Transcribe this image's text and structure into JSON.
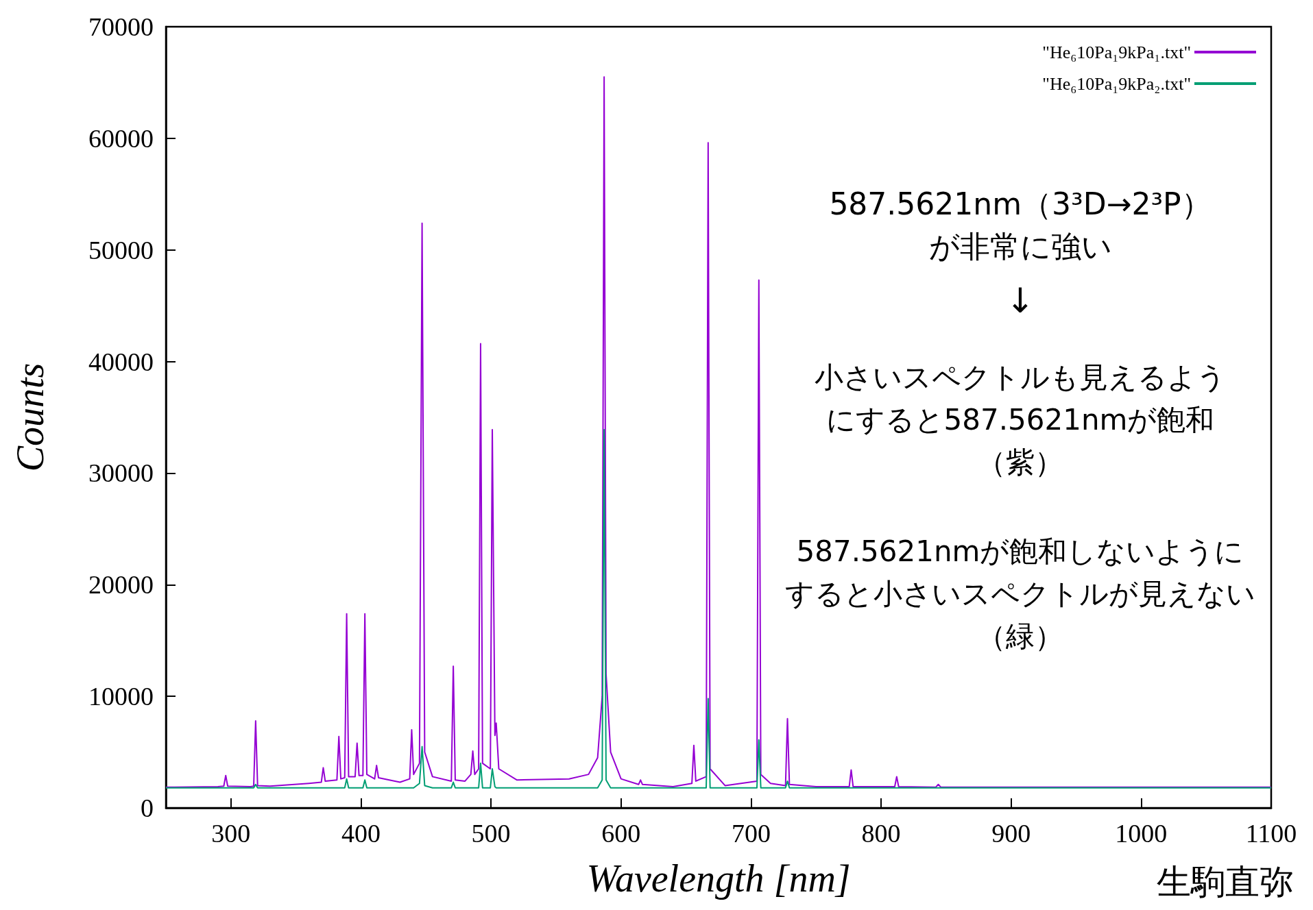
{
  "chart_data": {
    "type": "line",
    "xlabel": "Wavelength [nm]",
    "ylabel": "Counts",
    "xlim": [
      250,
      1100
    ],
    "ylim": [
      0,
      70000
    ],
    "xticks": [
      300,
      400,
      500,
      600,
      700,
      800,
      900,
      1000,
      1100
    ],
    "yticks": [
      0,
      10000,
      20000,
      30000,
      40000,
      50000,
      60000,
      70000
    ],
    "grid": false,
    "legend": "top right",
    "marker": "none",
    "line_style": "solid",
    "x": [
      250,
      290,
      294.5,
      296,
      297.5,
      315,
      317.5,
      319,
      320.5,
      330,
      360,
      369.5,
      371,
      372.5,
      381.5,
      383,
      384.5,
      387.5,
      389,
      390.5,
      395.5,
      397,
      398.5,
      401.5,
      403,
      404.5,
      410.5,
      412,
      413.5,
      430,
      437.5,
      439,
      440.5,
      445,
      447,
      449,
      455,
      469.5,
      471,
      472.5,
      480,
      484.5,
      486,
      487.5,
      490.5,
      492,
      493.5,
      499.5,
      501,
      503,
      504,
      506,
      520,
      560,
      575,
      582,
      585.5,
      587,
      588.5,
      592,
      600,
      613.5,
      615,
      616.5,
      640,
      654.5,
      656,
      657.5,
      665.5,
      667,
      668.5,
      680,
      704.5,
      706,
      707.5,
      715,
      726.5,
      728,
      729.5,
      750,
      775.5,
      777,
      778.5,
      810.5,
      812,
      813.5,
      842,
      844,
      846,
      900,
      1000,
      1100
    ],
    "series": [
      {
        "name": "\"He₆10Pa₁9kPa₁.txt\"",
        "color": "#9400d3",
        "values": [
          1850,
          1900,
          1950,
          2900,
          1950,
          1900,
          1950,
          7800,
          2000,
          1950,
          2200,
          2300,
          3600,
          2400,
          2500,
          6400,
          2600,
          2700,
          17400,
          2800,
          2800,
          5800,
          2900,
          2900,
          17400,
          3000,
          2600,
          3800,
          2700,
          2300,
          2600,
          7000,
          3000,
          4000,
          52400,
          5000,
          2800,
          2400,
          12700,
          2500,
          2400,
          3000,
          5100,
          3000,
          3500,
          41600,
          4000,
          3500,
          33900,
          6500,
          7600,
          3500,
          2500,
          2600,
          3000,
          4500,
          10000,
          65500,
          12000,
          5000,
          2600,
          2100,
          2500,
          2100,
          1900,
          2200,
          5600,
          2400,
          2800,
          59600,
          3500,
          2000,
          2400,
          47300,
          3000,
          2200,
          2000,
          8000,
          2100,
          1900,
          1900,
          3400,
          1900,
          1900,
          2800,
          1900,
          1850,
          2100,
          1850,
          1850,
          1850,
          1850
        ]
      },
      {
        "name": "\"He₆10Pa₁9kPa₂.txt\"",
        "color": "#009e73",
        "values": [
          1800,
          1800,
          1800,
          1800,
          1800,
          1800,
          1800,
          2100,
          1800,
          1800,
          1800,
          1800,
          1800,
          1800,
          1800,
          1800,
          1800,
          1800,
          2600,
          1800,
          1800,
          1800,
          1800,
          1800,
          2500,
          1800,
          1800,
          1800,
          1800,
          1800,
          1800,
          1800,
          1800,
          2200,
          5500,
          2000,
          1800,
          1800,
          2300,
          1800,
          1800,
          1800,
          1800,
          1800,
          1800,
          4000,
          1800,
          1800,
          3500,
          1900,
          1800,
          1800,
          1800,
          1800,
          1800,
          1800,
          2500,
          33900,
          2500,
          1800,
          1800,
          1800,
          1800,
          1800,
          1800,
          1800,
          1800,
          1800,
          1800,
          9800,
          1800,
          1800,
          1800,
          6100,
          1800,
          1800,
          1800,
          2400,
          1800,
          1800,
          1800,
          1800,
          1800,
          1800,
          1800,
          1800,
          1800,
          1800,
          1800,
          1800,
          1800,
          1800
        ]
      }
    ],
    "annotations": [
      "587.5621nm（3³D→2³P）",
      "が非常に強い",
      "↓",
      "小さいスペクトルも見えるよう",
      "にすると587.5621nmが飽和",
      "（紫）",
      "587.5621nmが飽和しないように",
      "すると小さいスペクトルが見えない",
      "（緑）",
      "生駒直弥"
    ]
  }
}
